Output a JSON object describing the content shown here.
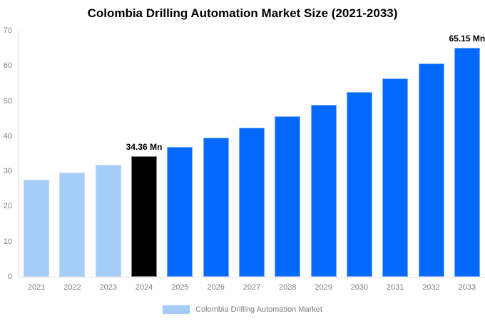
{
  "title": "Colombia Drilling Automation Market Size (2021-2033)",
  "legend": {
    "label": "Colombia Drilling Automation Market",
    "swatch_color": "#a5cdfa"
  },
  "colors": {
    "historical_bar": "#a5cdfa",
    "current_year_bar": "#000000",
    "forecast_bar": "#0568fd",
    "axis_text": "#7f7f7f",
    "axis_line": "#d9d9d9",
    "title_text": "#000000"
  },
  "chart_data": {
    "type": "bar",
    "title": "Colombia Drilling Automation Market Size (2021-2033)",
    "categories": [
      "2021",
      "2022",
      "2023",
      "2024",
      "2025",
      "2026",
      "2027",
      "2028",
      "2029",
      "2030",
      "2031",
      "2032",
      "2033"
    ],
    "values": [
      27.5,
      29.6,
      31.9,
      34.36,
      36.9,
      39.6,
      42.5,
      45.7,
      49.0,
      52.6,
      56.5,
      60.7,
      65.15
    ],
    "unit": "Mn",
    "bar_roles": [
      "historical",
      "historical",
      "historical",
      "current",
      "forecast",
      "forecast",
      "forecast",
      "forecast",
      "forecast",
      "forecast",
      "forecast",
      "forecast",
      "forecast"
    ],
    "annotations": [
      {
        "index": 3,
        "text": "34.36 Mn"
      },
      {
        "index": 12,
        "text": "65.15 Mn"
      }
    ],
    "xlabel": "",
    "ylabel": "",
    "ylim": [
      0,
      70
    ],
    "yticks": [
      0,
      10,
      20,
      30,
      40,
      50,
      60,
      70
    ],
    "grid": false,
    "legend_position": "bottom"
  }
}
